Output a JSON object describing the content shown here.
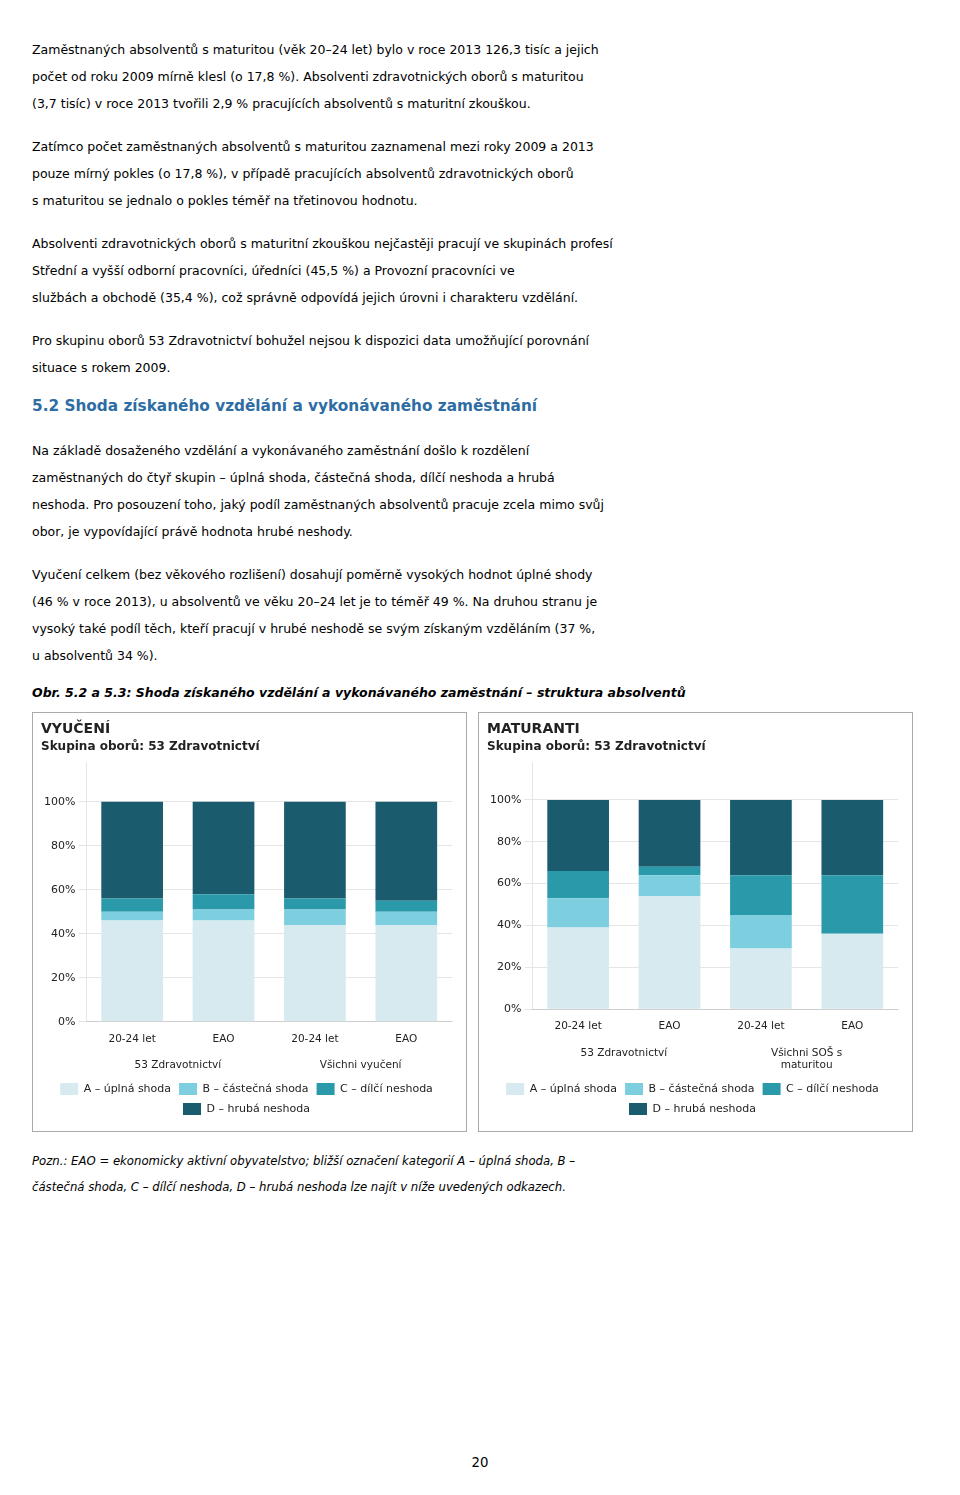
{
  "page": {
    "paragraphs_before": [
      [
        "Zaměstnaných absolventů s maturitou (věk 20–24 let) bylo v roce 2013 126,3 tisíc a jejich",
        "počet od roku 2009 mírně klesl (o 17,8 %). Absolventi zdravotnických oborů s maturitou",
        "(3,7 tisíc) v roce 2013 tvořili 2,9 % pracujících absolventů s maturitní zkouškou."
      ],
      [
        "Zatímco počet zaměstnaných absolventů s maturitou zaznamenal mezi roky 2009 a 2013",
        "pouze mírný pokles (o 17,8 %), v případě pracujících absolventů zdravotnických oborů",
        "s maturitou se jednalo o pokles téměř na třetinovou hodnotu."
      ],
      [
        "Absolventi zdravotnických oborů s maturitní zkouškou nejčastěji pracují ve skupinách profesí",
        "Střední a vyšší odborní pracovníci, úředníci (45,5 %) a Provozní pracovníci ve",
        "službách a obchodě (35,4 %), což správně odpovídá jejich úrovni i charakteru vzdělání."
      ],
      [
        "Pro skupinu oborů 53 Zdravotnictví bohužel nejsou k dispozici data umožňující porovnání",
        "situace s rokem 2009."
      ]
    ],
    "section_title": "5.2  Shoda získaného vzdělání a vykonávaného zaměstnání",
    "paragraphs_after": [
      [
        "Na základě dosaženého vzdělání a vykonávaného zaměstnání došlo k rozdělení",
        "zaměstnaných do čtyř skupin – úplná shoda, částečná shoda, dílčí neshoda a hrubá",
        "neshoda. Pro posouzení toho, jaký podíl zaměstnaných absolventů pracuje zcela mimo svůj",
        "obor, je vypovídající právě hodnota hrubé neshody."
      ],
      [
        "Vyučení celkem (bez věkového rozlišení) dosahují poměrně vysokých hodnot úplné shody",
        "(46 % v roce 2013), u absolventů ve věku 20–24 let je to téměř 49 %. Na druhou stranu je",
        "vysoký také podíl těch, kteří pracují v hrubé neshodě se svým získaným vzděláním (37 %,",
        "u absolventů 34 %)."
      ]
    ],
    "caption": "Obr. 5.2 a 5.3: Shoda získaného vzdělání a vykonávaného zaměstnání – struktura absolventů",
    "footnote": [
      "Pozn.: EAO = ekonomicky aktivní obyvatelstvo; bližší označení kategorií A – úplná shoda, B –",
      "částečná shoda, C – dílčí neshoda, D – hrubá neshoda lze najít v níže uvedených odkazech."
    ],
    "page_number": "20"
  },
  "chart_data": [
    {
      "type": "bar",
      "stacked": true,
      "title": "VYUČENÍ",
      "subtitle": "Skupina oborů: 53 Zdravotnictví",
      "categories": [
        "20-24 let",
        "EAO",
        "20-24 let",
        "EAO"
      ],
      "category_groups": [
        "53 Zdravotnictví",
        "Všichni vyučení"
      ],
      "series": [
        {
          "name": "A – úplná shoda",
          "color": "#d6eaf0",
          "values": [
            46,
            46,
            44,
            44
          ]
        },
        {
          "name": "B – částečná shoda",
          "color": "#7dcfe0",
          "values": [
            4,
            5,
            7,
            6
          ]
        },
        {
          "name": "C – dílčí neshoda",
          "color": "#2a9aaa",
          "values": [
            6,
            7,
            5,
            5
          ]
        },
        {
          "name": "D – hrubá neshoda",
          "color": "#1a5c6e",
          "values": [
            44,
            42,
            44,
            45
          ]
        }
      ],
      "ylim": [
        0,
        118
      ],
      "yticks": [
        {
          "value": 0,
          "label": "0%"
        },
        {
          "value": 20,
          "label": "20%"
        },
        {
          "value": 40,
          "label": "40%"
        },
        {
          "value": 60,
          "label": "60%"
        },
        {
          "value": 80,
          "label": "80%"
        },
        {
          "value": 100,
          "label": "100%"
        }
      ],
      "grid": true,
      "legend": "bottom"
    },
    {
      "type": "bar",
      "stacked": true,
      "title": "MATURANTI",
      "subtitle": "Skupina oborů: 53 Zdravotnictví",
      "categories": [
        "20-24 let",
        "EAO",
        "20-24 let",
        "EAO"
      ],
      "category_groups": [
        "53 Zdravotnictví",
        "Všichni SOŠ s\nmaturitou"
      ],
      "series": [
        {
          "name": "A – úplná shoda",
          "color": "#d6eaf0",
          "values": [
            39,
            54,
            29,
            36
          ]
        },
        {
          "name": "B – částečná shoda",
          "color": "#7dcfe0",
          "values": [
            14,
            10,
            16,
            0
          ]
        },
        {
          "name": "C – dílčí neshoda",
          "color": "#2a9aaa",
          "values": [
            13,
            4,
            19,
            28
          ]
        },
        {
          "name": "D – hrubá neshoda",
          "color": "#1a5c6e",
          "values": [
            34,
            32,
            36,
            36
          ]
        }
      ],
      "ylim": [
        0,
        118
      ],
      "yticks": [
        {
          "value": 0,
          "label": "0%"
        },
        {
          "value": 20,
          "label": "20%"
        },
        {
          "value": 40,
          "label": "40%"
        },
        {
          "value": 60,
          "label": "60%"
        },
        {
          "value": 80,
          "label": "80%"
        },
        {
          "value": 100,
          "label": "100%"
        }
      ],
      "grid": true,
      "legend": "bottom"
    }
  ]
}
